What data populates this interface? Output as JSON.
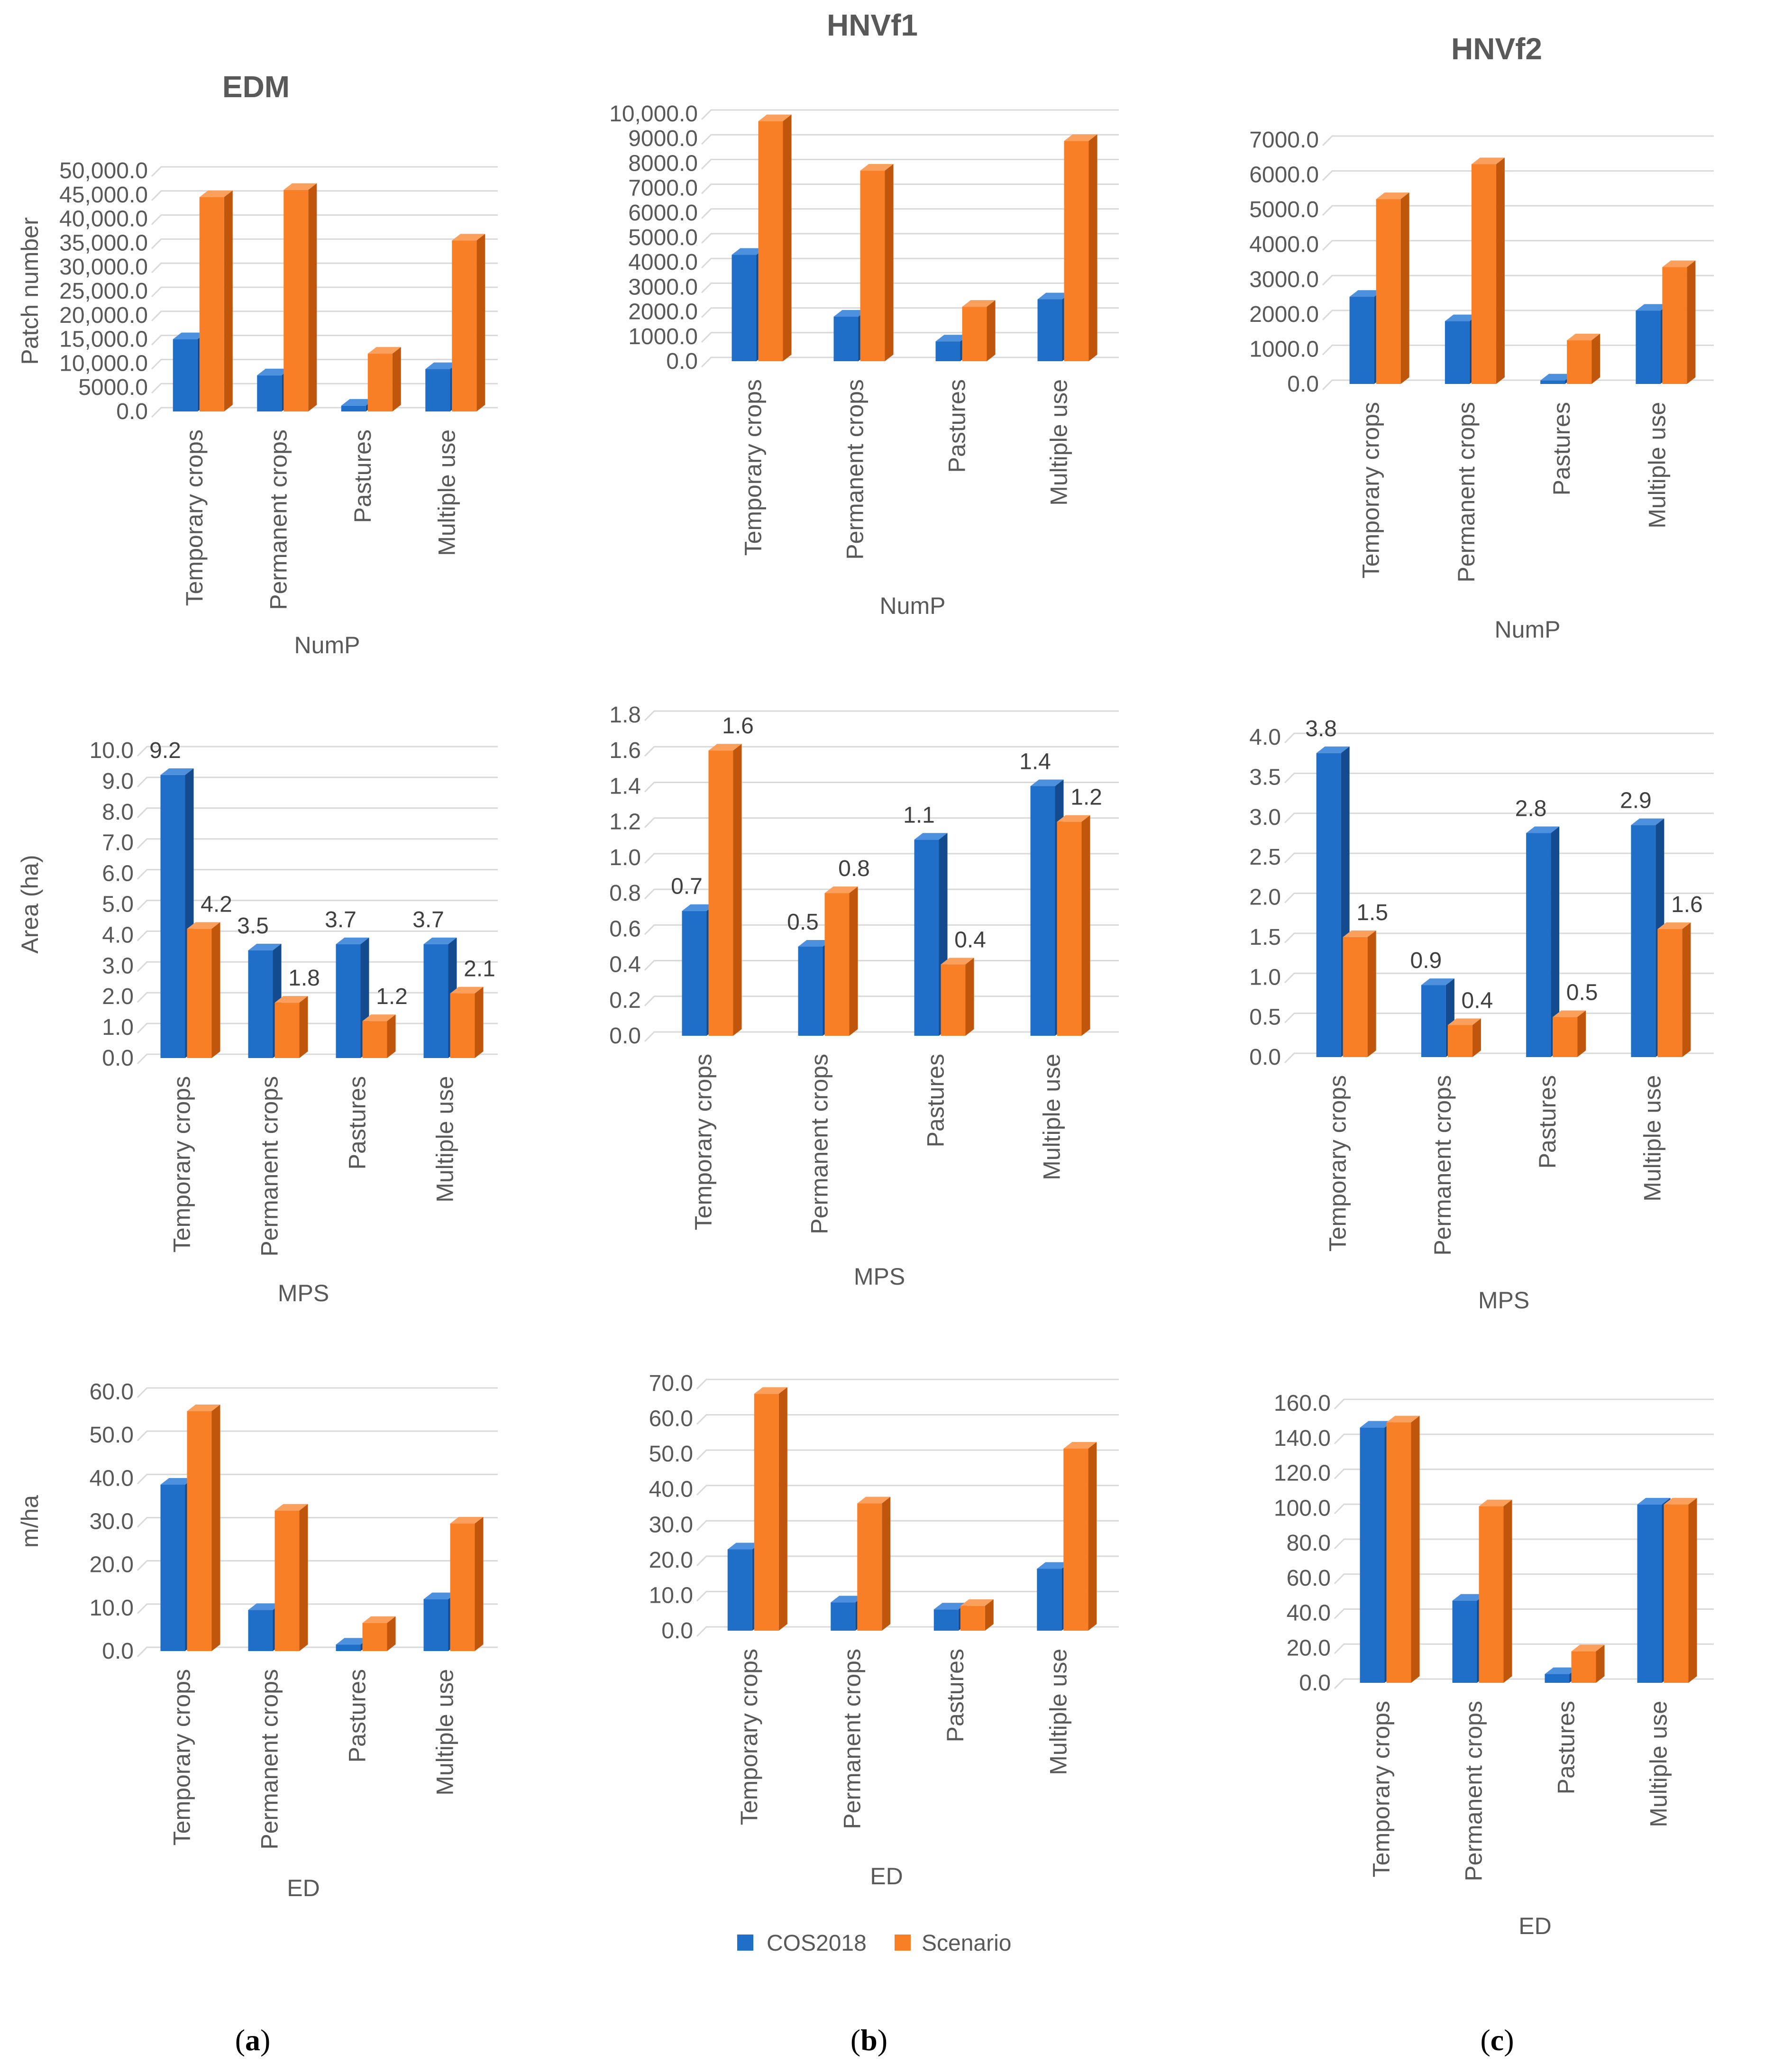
{
  "colors": {
    "cos2018_front": "#1F6FC8",
    "cos2018_top": "#4D91DE",
    "cos2018_side": "#134B8E",
    "scenario_front": "#F87F26",
    "scenario_top": "#FAA05C",
    "scenario_side": "#C0560B"
  },
  "legend": {
    "series": [
      "COS2018",
      "Scenario"
    ]
  },
  "column_labels": [
    {
      "open": "(",
      "letter": "a",
      "close": ")"
    },
    {
      "open": "(",
      "letter": "b",
      "close": ")"
    },
    {
      "open": "(",
      "letter": "c",
      "close": ")"
    }
  ],
  "chart_data": [
    {
      "id": "edm-nump",
      "type": "bar",
      "title": "EDM",
      "xlabel": "NumP",
      "ylabel": "Patch number",
      "categories": [
        "Temporary crops",
        "Permanent crops",
        "Pastures",
        "Multiple use"
      ],
      "series": [
        {
          "name": "COS2018",
          "values": [
            15000,
            7500,
            1200,
            8800
          ]
        },
        {
          "name": "Scenario",
          "values": [
            44500,
            46000,
            12000,
            35500
          ]
        }
      ],
      "ylim": [
        0,
        50000
      ],
      "ticks": [
        "0.0",
        "5000.0",
        "10,000.0",
        "15,000.0",
        "20,000.0",
        "25,000.0",
        "30,000.0",
        "35,000.0",
        "40,000.0",
        "45,000.0",
        "50,000.0"
      ],
      "data_labels": false
    },
    {
      "id": "hnvf1-nump",
      "type": "bar",
      "title": "HNVf1",
      "xlabel": "NumP",
      "ylabel": "",
      "categories": [
        "Temporary crops",
        "Permanent crops",
        "Pastures",
        "Multiple use"
      ],
      "series": [
        {
          "name": "COS2018",
          "values": [
            4300,
            1800,
            800,
            2500
          ]
        },
        {
          "name": "Scenario",
          "values": [
            9700,
            7700,
            2200,
            8900
          ]
        }
      ],
      "ylim": [
        0,
        10000
      ],
      "ticks": [
        "0.0",
        "1000.0",
        "2000.0",
        "3000.0",
        "4000.0",
        "5000.0",
        "6000.0",
        "7000.0",
        "8000.0",
        "9000.0",
        "10,000.0"
      ],
      "data_labels": false
    },
    {
      "id": "hnvf2-nump",
      "type": "bar",
      "title": "HNVf2",
      "xlabel": "NumP",
      "ylabel": "",
      "categories": [
        "Temporary crops",
        "Permanent crops",
        "Pastures",
        "Multiple use"
      ],
      "series": [
        {
          "name": "COS2018",
          "values": [
            2500,
            1800,
            100,
            2100
          ]
        },
        {
          "name": "Scenario",
          "values": [
            5300,
            6300,
            1250,
            3350
          ]
        }
      ],
      "ylim": [
        0,
        7000
      ],
      "ticks": [
        "0.0",
        "1000.0",
        "2000.0",
        "3000.0",
        "4000.0",
        "5000.0",
        "6000.0",
        "7000.0"
      ],
      "data_labels": false
    },
    {
      "id": "edm-mps",
      "type": "bar",
      "title": "",
      "xlabel": "MPS",
      "ylabel": "Area (ha)",
      "categories": [
        "Temporary crops",
        "Permanent crops",
        "Pastures",
        "Multiple use"
      ],
      "series": [
        {
          "name": "COS2018",
          "values": [
            9.2,
            3.5,
            3.7,
            3.7
          ]
        },
        {
          "name": "Scenario",
          "values": [
            4.2,
            1.8,
            1.2,
            2.1
          ]
        }
      ],
      "ylim": [
        0,
        10
      ],
      "ticks": [
        "0.0",
        "1.0",
        "2.0",
        "3.0",
        "4.0",
        "5.0",
        "6.0",
        "7.0",
        "8.0",
        "9.0",
        "10.0"
      ],
      "data_labels": true
    },
    {
      "id": "hnvf1-mps",
      "type": "bar",
      "title": "",
      "xlabel": "MPS",
      "ylabel": "",
      "categories": [
        "Temporary crops",
        "Permanent crops",
        "Pastures",
        "Multiple use"
      ],
      "series": [
        {
          "name": "COS2018",
          "values": [
            0.7,
            0.5,
            1.1,
            1.4
          ]
        },
        {
          "name": "Scenario",
          "values": [
            1.6,
            0.8,
            0.4,
            1.2
          ]
        }
      ],
      "ylim": [
        0,
        1.8
      ],
      "ticks": [
        "0.0",
        "0.2",
        "0.4",
        "0.6",
        "0.8",
        "1.0",
        "1.2",
        "1.4",
        "1.6",
        "1.8"
      ],
      "data_labels": true
    },
    {
      "id": "hnvf2-mps",
      "type": "bar",
      "title": "",
      "xlabel": "MPS",
      "ylabel": "",
      "categories": [
        "Temporary crops",
        "Permanent crops",
        "Pastures",
        "Multiple use"
      ],
      "series": [
        {
          "name": "COS2018",
          "values": [
            3.8,
            0.9,
            2.8,
            2.9
          ]
        },
        {
          "name": "Scenario",
          "values": [
            1.5,
            0.4,
            0.5,
            1.6
          ]
        }
      ],
      "ylim": [
        0,
        4
      ],
      "ticks": [
        "0.0",
        "0.5",
        "1.0",
        "1.5",
        "2.0",
        "2.5",
        "3.0",
        "3.5",
        "4.0"
      ],
      "data_labels": true
    },
    {
      "id": "edm-ed",
      "type": "bar",
      "title": "",
      "xlabel": "ED",
      "ylabel": "m/ha",
      "categories": [
        "Temporary crops",
        "Permanent crops",
        "Pastures",
        "Multiple use"
      ],
      "series": [
        {
          "name": "COS2018",
          "values": [
            38.5,
            9.5,
            1.5,
            12.0
          ]
        },
        {
          "name": "Scenario",
          "values": [
            55.5,
            32.5,
            6.5,
            29.5
          ]
        }
      ],
      "ylim": [
        0,
        60
      ],
      "ticks": [
        "0.0",
        "10.0",
        "20.0",
        "30.0",
        "40.0",
        "50.0",
        "60.0"
      ],
      "data_labels": false
    },
    {
      "id": "hnvf1-ed",
      "type": "bar",
      "title": "",
      "xlabel": "ED",
      "ylabel": "",
      "categories": [
        "Temporary crops",
        "Permanent crops",
        "Pastures",
        "Multiple use"
      ],
      "series": [
        {
          "name": "COS2018",
          "values": [
            23.0,
            8.0,
            6.0,
            17.5
          ]
        },
        {
          "name": "Scenario",
          "values": [
            67.0,
            36.0,
            7.0,
            51.5
          ]
        }
      ],
      "ylim": [
        0,
        70
      ],
      "ticks": [
        "0.0",
        "10.0",
        "20.0",
        "30.0",
        "40.0",
        "50.0",
        "60.0",
        "70.0"
      ],
      "data_labels": false
    },
    {
      "id": "hnvf2-ed",
      "type": "bar",
      "title": "",
      "xlabel": "ED",
      "ylabel": "",
      "categories": [
        "Temporary crops",
        "Permanent crops",
        "Pastures",
        "Multiple use"
      ],
      "series": [
        {
          "name": "COS2018",
          "values": [
            146.0,
            47.0,
            5.0,
            102.0
          ]
        },
        {
          "name": "Scenario",
          "values": [
            149.0,
            101.0,
            18.0,
            102.0
          ]
        }
      ],
      "ylim": [
        0,
        160
      ],
      "ticks": [
        "0.0",
        "20.0",
        "40.0",
        "60.0",
        "80.0",
        "100.0",
        "120.0",
        "140.0",
        "160.0"
      ],
      "data_labels": false
    }
  ]
}
